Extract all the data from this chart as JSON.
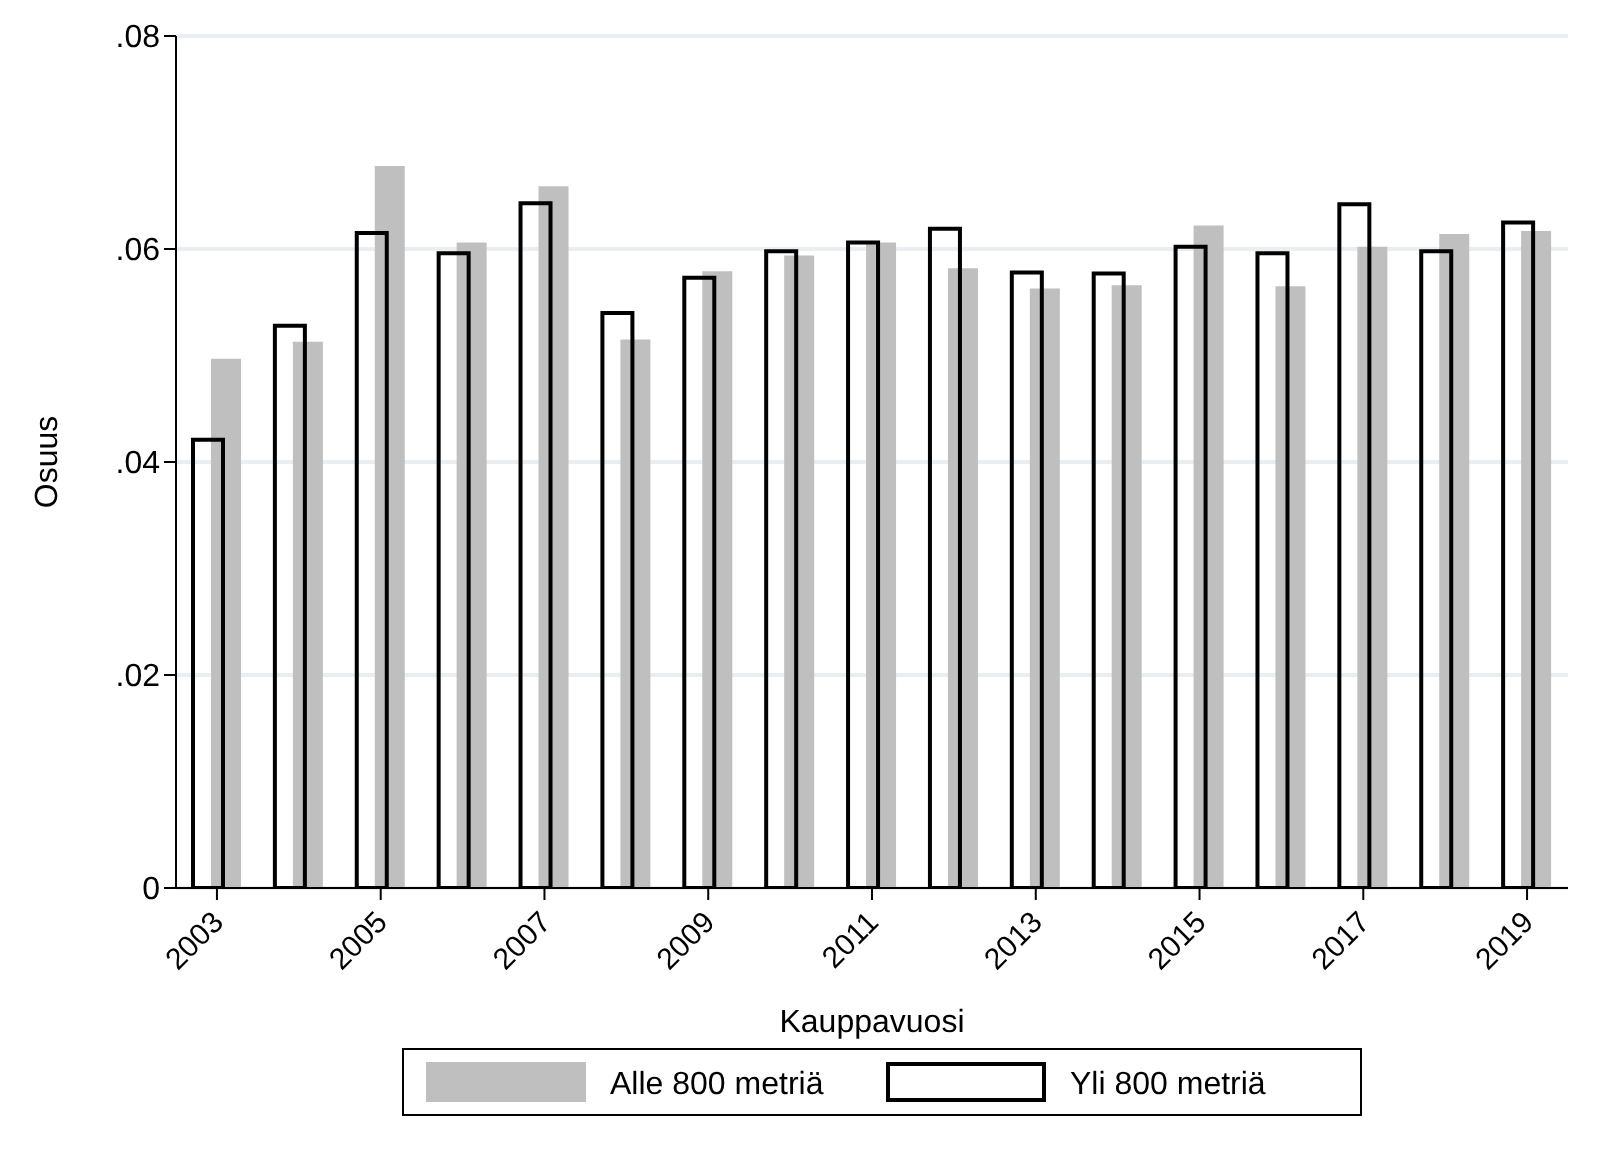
{
  "chart_data": {
    "type": "bar",
    "xlabel": "Kauppavuosi",
    "ylabel": "Osuus",
    "categories": [
      "2003",
      null,
      "2005",
      null,
      "2007",
      null,
      "2009",
      null,
      "2011",
      null,
      "2013",
      null,
      "2015",
      null,
      "2017",
      null,
      "2019"
    ],
    "series": [
      {
        "name": "Alle 800 metriä",
        "color": "#bfbfbf",
        "values": [
          0.0497,
          0.0513,
          0.0678,
          0.0606,
          0.0659,
          0.0515,
          0.0579,
          0.0594,
          0.0606,
          0.0582,
          0.0563,
          0.0566,
          0.0622,
          0.0565,
          0.0602,
          0.0614,
          0.0617
        ]
      },
      {
        "name": "Yli 800 metriä",
        "color": "#000000",
        "values": [
          0.0421,
          0.0528,
          0.0615,
          0.0596,
          0.0643,
          0.054,
          0.0573,
          0.0598,
          0.0606,
          0.0619,
          0.0578,
          0.0577,
          0.0602,
          0.0596,
          0.0642,
          0.0598,
          0.0625
        ]
      }
    ],
    "ylim": [
      0,
      0.08
    ],
    "yticks": [
      0,
      {
        "value": 0.02,
        "label": ".02"
      },
      {
        "value": 0.04,
        "label": ".04"
      },
      {
        "value": 0.06,
        "label": ".06"
      },
      {
        "value": 0.08,
        "label": ".08"
      }
    ],
    "grid": "y",
    "legend": "bottom"
  }
}
